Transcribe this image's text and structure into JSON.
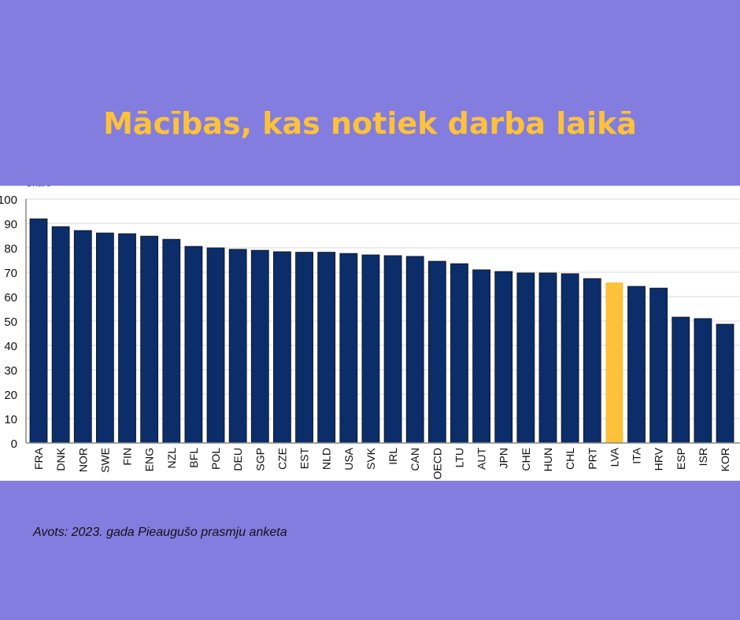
{
  "title": "Mācības, kas notiek darba laikā",
  "source": "Avots: 2023. gada Pieaugušo prasmju anketa",
  "colors": {
    "background": "#837ddf",
    "title": "#fdc23a",
    "bar": "#0b2d69",
    "highlight": "#fdc23a"
  },
  "chart_data": {
    "type": "bar",
    "ylabel": "Share",
    "ylim": [
      0,
      100
    ],
    "yticks": [
      0,
      10,
      20,
      30,
      40,
      50,
      60,
      70,
      80,
      90,
      100
    ],
    "grid": true,
    "highlight": "LVA",
    "categories": [
      "FRA",
      "DNK",
      "NOR",
      "SWE",
      "FIN",
      "ENG",
      "NZL",
      "BFL",
      "POL",
      "DEU",
      "SGP",
      "CZE",
      "EST",
      "NLD",
      "USA",
      "SVK",
      "IRL",
      "CAN",
      "OECD",
      "LTU",
      "AUT",
      "JPN",
      "CHE",
      "HUN",
      "CHL",
      "PRT",
      "LVA",
      "ITA",
      "HRV",
      "ESP",
      "ISR",
      "KOR"
    ],
    "values": [
      91.9,
      88.7,
      87.1,
      86.1,
      85.8,
      84.8,
      83.5,
      80.6,
      80.0,
      79.4,
      79.0,
      78.4,
      78.2,
      78.2,
      77.7,
      77.1,
      76.8,
      76.5,
      74.5,
      73.5,
      71.0,
      70.3,
      69.7,
      69.7,
      69.4,
      67.4,
      65.8,
      64.2,
      63.5,
      51.6,
      51.0,
      48.7
    ]
  }
}
